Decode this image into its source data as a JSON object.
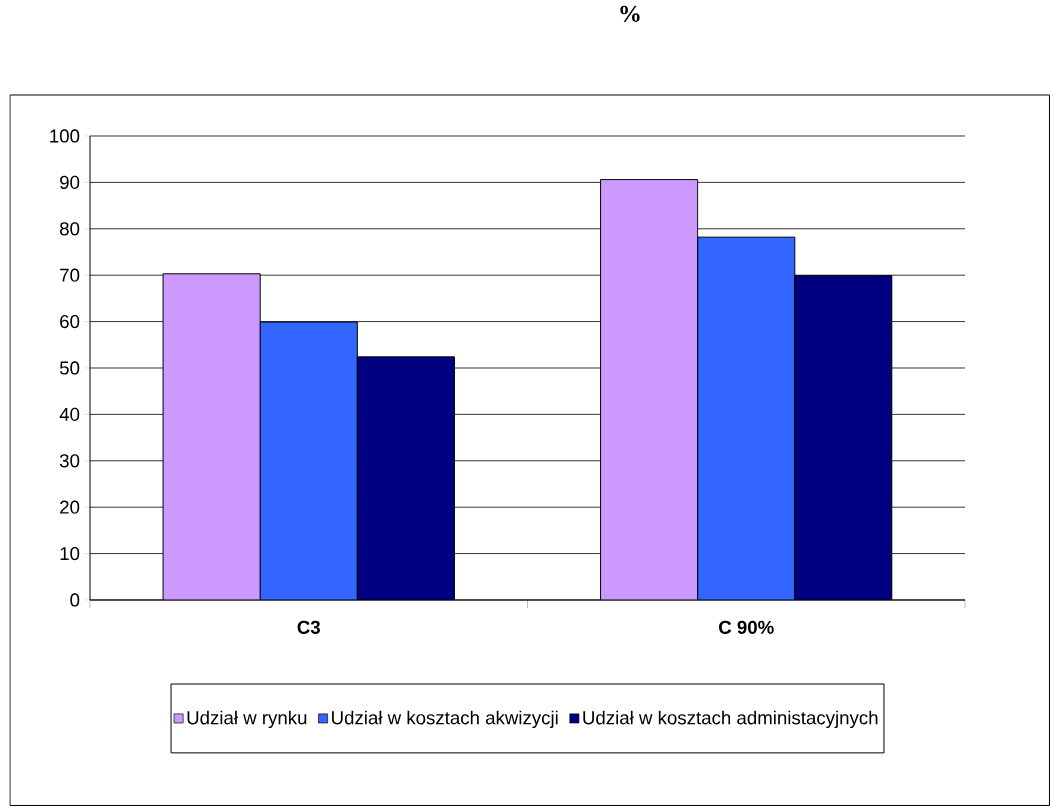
{
  "chart_data": {
    "type": "bar",
    "title": "%",
    "categories": [
      "C3",
      "C 90%"
    ],
    "series": [
      {
        "name": "Udział w rynku",
        "color": "#cc99ff",
        "values": [
          70.3,
          90.6
        ]
      },
      {
        "name": "Udział w kosztach akwizycji",
        "color": "#3366ff",
        "values": [
          59.9,
          78.2
        ]
      },
      {
        "name": "Udział w kosztach administacyjnych",
        "color": "#000080",
        "values": [
          52.4,
          69.9
        ]
      }
    ],
    "ylim": [
      0,
      100
    ],
    "yticks": [
      0,
      10,
      20,
      30,
      40,
      50,
      60,
      70,
      80,
      90,
      100
    ],
    "grid": "y",
    "legend": "bottom"
  }
}
